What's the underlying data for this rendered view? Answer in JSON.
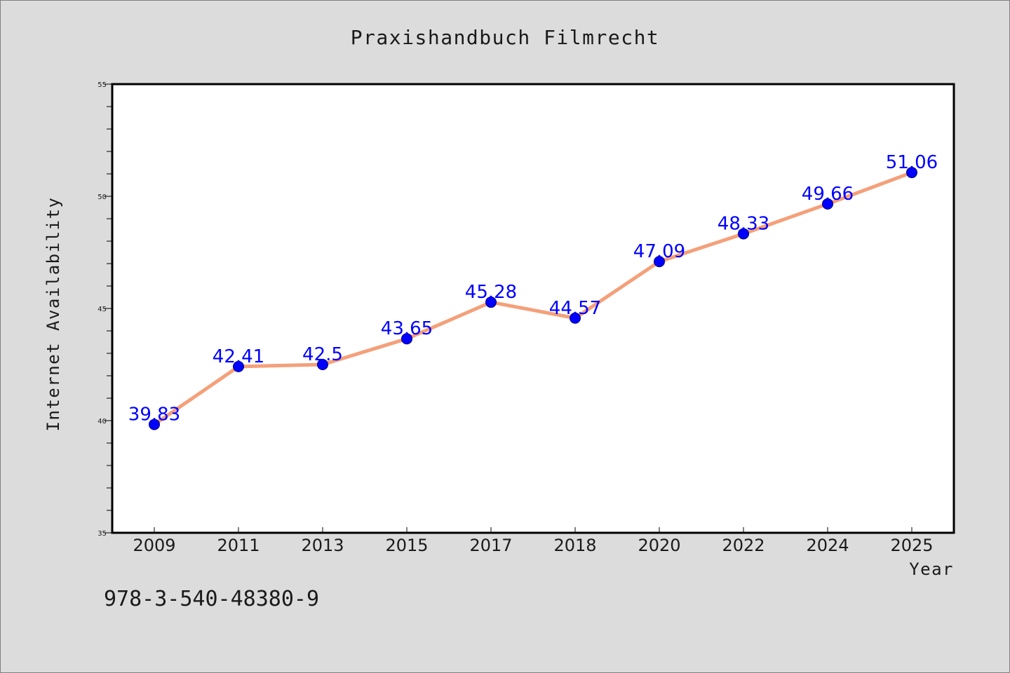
{
  "chart_data": {
    "type": "line",
    "title": "Praxishandbuch Filmrecht",
    "xlabel": "Year",
    "ylabel": "Internet Availability",
    "categories": [
      "2009",
      "2011",
      "2013",
      "2015",
      "2017",
      "2018",
      "2020",
      "2022",
      "2024",
      "2025"
    ],
    "series": [
      {
        "values": [
          39.83,
          42.41,
          42.5,
          43.65,
          45.28,
          44.57,
          47.09,
          48.33,
          49.66,
          51.06
        ]
      }
    ],
    "data_labels": [
      "39.83",
      "42.41",
      "42.5",
      "43.65",
      "45.28",
      "44.57",
      "47.09",
      "48.33",
      "49.66",
      "51.06"
    ],
    "ylim": [
      35,
      55
    ],
    "yticks": [
      35,
      40,
      45,
      50,
      55
    ],
    "y_minor_step": 1,
    "grid": false,
    "line_color": "#f4a07a",
    "marker_color": "#0000ff",
    "label_color": "#0000ff",
    "annotation": "978-3-540-48380-9"
  }
}
